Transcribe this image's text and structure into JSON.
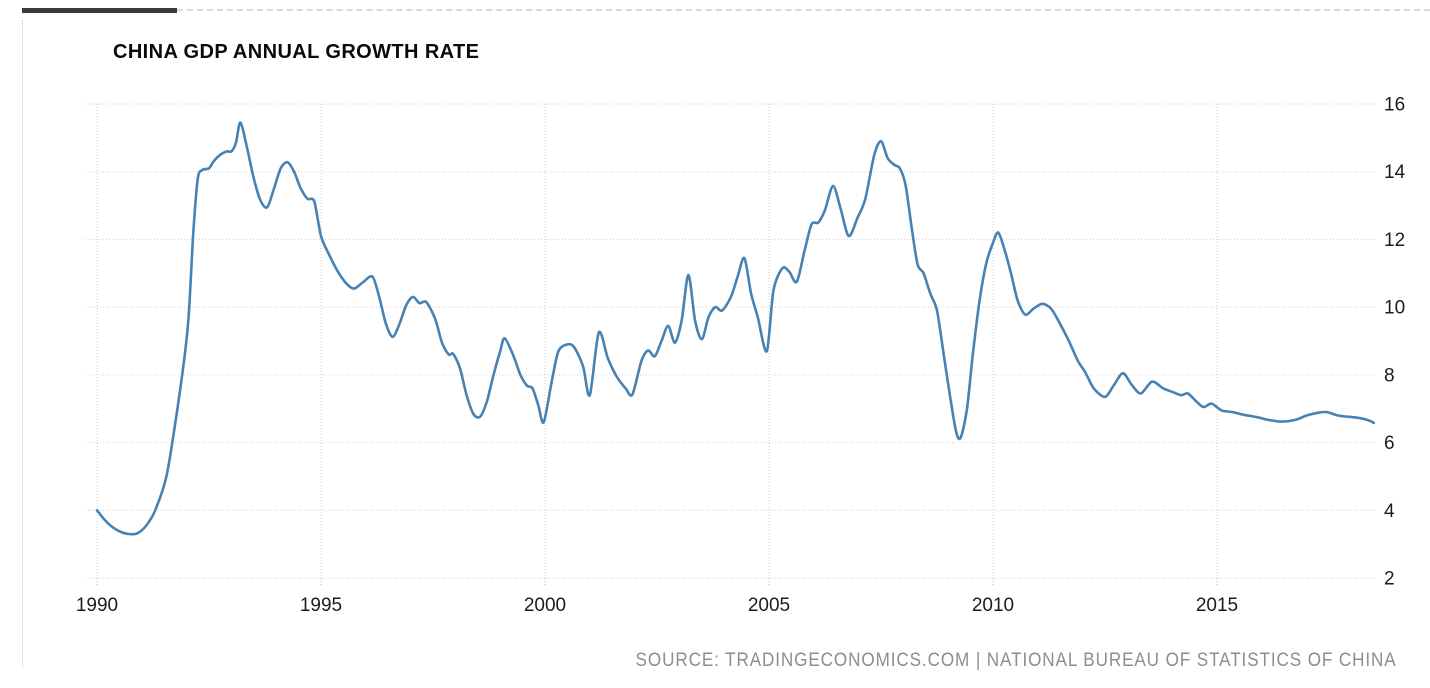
{
  "header": {
    "title": "CHINA GDP ANNUAL GROWTH RATE"
  },
  "source": {
    "text": "SOURCE:  TRADINGECONOMICS.COM | NATIONAL BUREAU OF STATISTICS OF CHINA",
    "color": "#8d8d8d"
  },
  "decor": {
    "accent_bar_color": "#3a3a3a",
    "top_rule_color": "#d9d9d9",
    "frame_dot_color": "#c9c9c9"
  },
  "chart_data": {
    "type": "line",
    "title": "CHINA GDP ANNUAL GROWTH RATE",
    "xlabel": "",
    "ylabel": "",
    "x_ticks": [
      1990,
      1995,
      2000,
      2005,
      2010,
      2015
    ],
    "y_ticks": [
      2,
      4,
      6,
      8,
      10,
      12,
      14,
      16
    ],
    "xlim": [
      1989.7,
      2018.8
    ],
    "ylim": [
      2,
      16
    ],
    "grid": {
      "color": "#d3cdd6",
      "style": "dotted",
      "horizontal": true,
      "vertical": true
    },
    "legend": "none",
    "axis_label_color": "#1c1c1c",
    "series": [
      {
        "name": "China GDP Annual Growth Rate (%)",
        "color": "#4682b4",
        "points": [
          [
            1990.0,
            4.0
          ],
          [
            1990.15,
            3.75
          ],
          [
            1990.3,
            3.55
          ],
          [
            1990.5,
            3.38
          ],
          [
            1990.7,
            3.3
          ],
          [
            1990.9,
            3.32
          ],
          [
            1991.1,
            3.55
          ],
          [
            1991.3,
            4.0
          ],
          [
            1991.55,
            5.0
          ],
          [
            1991.75,
            6.6
          ],
          [
            1991.95,
            8.5
          ],
          [
            1992.05,
            9.8
          ],
          [
            1992.15,
            12.2
          ],
          [
            1992.25,
            13.8
          ],
          [
            1992.35,
            14.05
          ],
          [
            1992.5,
            14.1
          ],
          [
            1992.6,
            14.3
          ],
          [
            1992.75,
            14.5
          ],
          [
            1992.9,
            14.6
          ],
          [
            1993.0,
            14.6
          ],
          [
            1993.1,
            14.85
          ],
          [
            1993.2,
            15.45
          ],
          [
            1993.35,
            14.7
          ],
          [
            1993.5,
            13.8
          ],
          [
            1993.65,
            13.15
          ],
          [
            1993.8,
            12.95
          ],
          [
            1993.95,
            13.5
          ],
          [
            1994.1,
            14.1
          ],
          [
            1994.25,
            14.28
          ],
          [
            1994.4,
            14.0
          ],
          [
            1994.55,
            13.5
          ],
          [
            1994.7,
            13.2
          ],
          [
            1994.85,
            13.12
          ],
          [
            1995.0,
            12.1
          ],
          [
            1995.2,
            11.5
          ],
          [
            1995.4,
            11.0
          ],
          [
            1995.6,
            10.65
          ],
          [
            1995.75,
            10.55
          ],
          [
            1995.95,
            10.75
          ],
          [
            1996.15,
            10.9
          ],
          [
            1996.3,
            10.3
          ],
          [
            1996.45,
            9.5
          ],
          [
            1996.6,
            9.12
          ],
          [
            1996.75,
            9.5
          ],
          [
            1996.9,
            10.05
          ],
          [
            1997.05,
            10.3
          ],
          [
            1997.2,
            10.12
          ],
          [
            1997.35,
            10.15
          ],
          [
            1997.55,
            9.65
          ],
          [
            1997.7,
            8.95
          ],
          [
            1997.85,
            8.6
          ],
          [
            1997.95,
            8.62
          ],
          [
            1998.1,
            8.2
          ],
          [
            1998.25,
            7.4
          ],
          [
            1998.4,
            6.85
          ],
          [
            1998.55,
            6.76
          ],
          [
            1998.7,
            7.2
          ],
          [
            1998.85,
            8.0
          ],
          [
            1999.0,
            8.7
          ],
          [
            1999.1,
            9.08
          ],
          [
            1999.3,
            8.55
          ],
          [
            1999.45,
            8.0
          ],
          [
            1999.6,
            7.68
          ],
          [
            1999.72,
            7.6
          ],
          [
            1999.85,
            7.1
          ],
          [
            1999.97,
            6.6
          ],
          [
            2000.15,
            7.8
          ],
          [
            2000.3,
            8.7
          ],
          [
            2000.5,
            8.9
          ],
          [
            2000.65,
            8.82
          ],
          [
            2000.85,
            8.25
          ],
          [
            2001.0,
            7.4
          ],
          [
            2001.2,
            9.25
          ],
          [
            2001.4,
            8.5
          ],
          [
            2001.6,
            7.95
          ],
          [
            2001.8,
            7.6
          ],
          [
            2001.95,
            7.42
          ],
          [
            2002.15,
            8.4
          ],
          [
            2002.3,
            8.72
          ],
          [
            2002.45,
            8.55
          ],
          [
            2002.6,
            9.0
          ],
          [
            2002.75,
            9.45
          ],
          [
            2002.9,
            8.95
          ],
          [
            2003.05,
            9.6
          ],
          [
            2003.2,
            10.95
          ],
          [
            2003.35,
            9.6
          ],
          [
            2003.5,
            9.05
          ],
          [
            2003.65,
            9.7
          ],
          [
            2003.8,
            10.0
          ],
          [
            2003.95,
            9.9
          ],
          [
            2004.15,
            10.3
          ],
          [
            2004.3,
            10.9
          ],
          [
            2004.45,
            11.45
          ],
          [
            2004.6,
            10.4
          ],
          [
            2004.75,
            9.7
          ],
          [
            2004.95,
            8.7
          ],
          [
            2005.1,
            10.5
          ],
          [
            2005.3,
            11.15
          ],
          [
            2005.45,
            11.05
          ],
          [
            2005.62,
            10.75
          ],
          [
            2005.8,
            11.7
          ],
          [
            2005.95,
            12.45
          ],
          [
            2006.1,
            12.5
          ],
          [
            2006.25,
            12.87
          ],
          [
            2006.43,
            13.58
          ],
          [
            2006.6,
            12.9
          ],
          [
            2006.78,
            12.1
          ],
          [
            2006.98,
            12.65
          ],
          [
            2007.15,
            13.2
          ],
          [
            2007.35,
            14.5
          ],
          [
            2007.5,
            14.9
          ],
          [
            2007.65,
            14.4
          ],
          [
            2007.8,
            14.2
          ],
          [
            2007.92,
            14.1
          ],
          [
            2008.05,
            13.6
          ],
          [
            2008.2,
            12.2
          ],
          [
            2008.32,
            11.25
          ],
          [
            2008.45,
            11.0
          ],
          [
            2008.6,
            10.4
          ],
          [
            2008.75,
            9.9
          ],
          [
            2008.9,
            8.6
          ],
          [
            2009.05,
            7.3
          ],
          [
            2009.18,
            6.3
          ],
          [
            2009.28,
            6.15
          ],
          [
            2009.42,
            7.0
          ],
          [
            2009.55,
            8.6
          ],
          [
            2009.7,
            10.2
          ],
          [
            2009.85,
            11.3
          ],
          [
            2010.0,
            11.9
          ],
          [
            2010.12,
            12.2
          ],
          [
            2010.28,
            11.6
          ],
          [
            2010.42,
            10.9
          ],
          [
            2010.55,
            10.2
          ],
          [
            2010.72,
            9.78
          ],
          [
            2010.9,
            9.95
          ],
          [
            2011.1,
            10.1
          ],
          [
            2011.3,
            9.95
          ],
          [
            2011.5,
            9.5
          ],
          [
            2011.7,
            8.98
          ],
          [
            2011.9,
            8.4
          ],
          [
            2012.05,
            8.1
          ],
          [
            2012.25,
            7.6
          ],
          [
            2012.5,
            7.35
          ],
          [
            2012.7,
            7.7
          ],
          [
            2012.9,
            8.05
          ],
          [
            2013.1,
            7.7
          ],
          [
            2013.3,
            7.45
          ],
          [
            2013.55,
            7.8
          ],
          [
            2013.8,
            7.6
          ],
          [
            2014.0,
            7.5
          ],
          [
            2014.2,
            7.4
          ],
          [
            2014.35,
            7.45
          ],
          [
            2014.55,
            7.2
          ],
          [
            2014.7,
            7.05
          ],
          [
            2014.88,
            7.15
          ],
          [
            2015.1,
            6.95
          ],
          [
            2015.35,
            6.9
          ],
          [
            2015.6,
            6.82
          ],
          [
            2015.9,
            6.75
          ],
          [
            2016.15,
            6.67
          ],
          [
            2016.45,
            6.62
          ],
          [
            2016.75,
            6.67
          ],
          [
            2017.0,
            6.8
          ],
          [
            2017.25,
            6.88
          ],
          [
            2017.45,
            6.9
          ],
          [
            2017.7,
            6.8
          ],
          [
            2017.95,
            6.76
          ],
          [
            2018.2,
            6.72
          ],
          [
            2018.4,
            6.65
          ],
          [
            2018.5,
            6.58
          ]
        ]
      }
    ]
  }
}
